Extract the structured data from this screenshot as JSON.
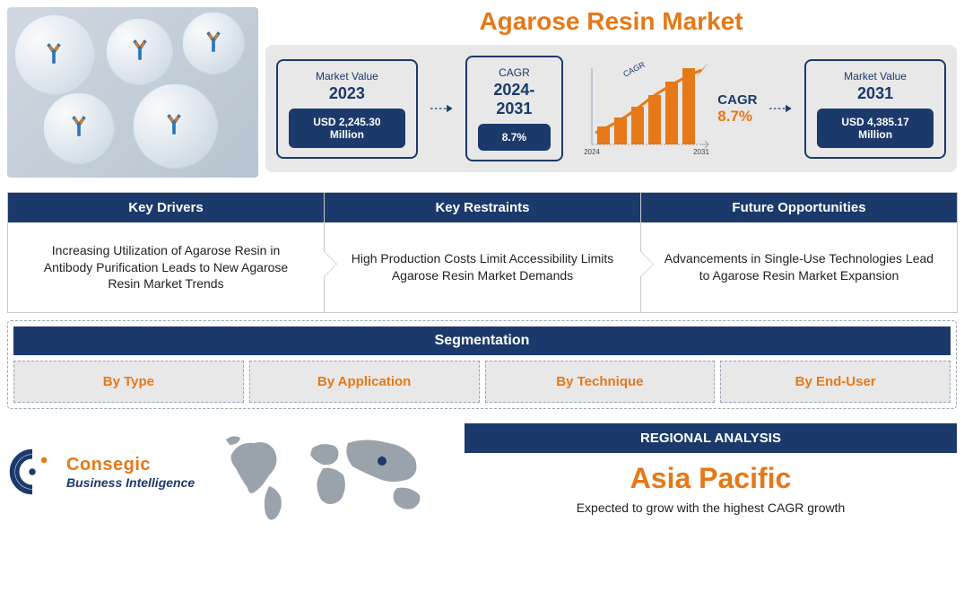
{
  "title": "Agarose Resin Market",
  "colors": {
    "primary": "#1b3a6b",
    "accent": "#e67817",
    "panel_bg": "#e8e8e8",
    "border": "#c5c8ce"
  },
  "metric_2023": {
    "label": "Market Value",
    "year": "2023",
    "value": "USD 2,245.30 Million"
  },
  "cagr_box": {
    "label": "CAGR",
    "period": "2024-2031",
    "value": "8.7%"
  },
  "cagr_chart": {
    "side_label": "CAGR",
    "side_pct": "8.7%",
    "top_label": "CAGR",
    "x_start": "2024",
    "x_end": "2031",
    "bars": [
      20,
      30,
      42,
      55,
      70,
      85
    ],
    "bar_color": "#e67817",
    "arrow_color": "#e67817"
  },
  "metric_2031": {
    "label": "Market Value",
    "year": "2031",
    "value": "USD 4,385.17 Million"
  },
  "factors": {
    "drivers": {
      "header": "Key Drivers",
      "body": "Increasing Utilization of Agarose Resin in Antibody Purification Leads to New Agarose Resin Market Trends"
    },
    "restraints": {
      "header": "Key Restraints",
      "body": "High Production Costs Limit Accessibility Limits Agarose Resin Market Demands"
    },
    "opportunities": {
      "header": "Future Opportunities",
      "body": "Advancements in Single-Use Technologies Lead to Agarose Resin Market Expansion"
    }
  },
  "segmentation": {
    "header": "Segmentation",
    "items": [
      "By Type",
      "By Application",
      "By Technique",
      "By End-User"
    ]
  },
  "logo": {
    "line1": "Consegic",
    "line2": "Business Intelligence"
  },
  "region": {
    "header": "REGIONAL ANALYSIS",
    "name": "Asia Pacific",
    "desc": "Expected to grow with the highest CAGR growth"
  }
}
